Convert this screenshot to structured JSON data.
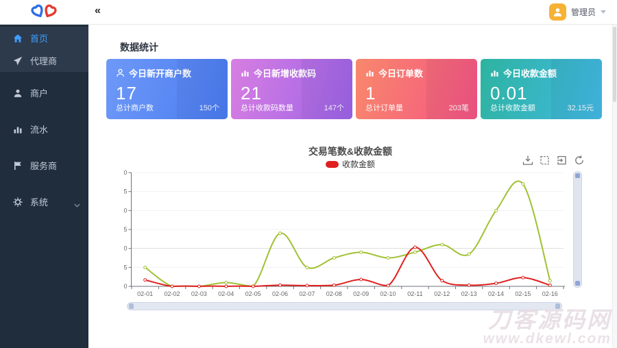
{
  "header": {
    "collapse_icon": "«",
    "user": {
      "name": "管理员"
    }
  },
  "sidebar": {
    "items": [
      {
        "label": "首页",
        "icon": "home-icon",
        "active": true
      },
      {
        "label": "代理商",
        "icon": "send-icon",
        "active": false
      },
      {
        "label": "商户",
        "icon": "user-icon",
        "active": false
      },
      {
        "label": "流水",
        "icon": "bar-chart-icon",
        "active": false
      },
      {
        "label": "服务商",
        "icon": "flag-icon",
        "active": false
      },
      {
        "label": "系统",
        "icon": "gear-icon",
        "active": false,
        "has_children": true
      }
    ]
  },
  "page": {
    "section_title": "数据统计"
  },
  "cards": [
    {
      "title": "今日新开商户数",
      "value": "17",
      "footer_label": "总计商户数",
      "footer_value": "150个",
      "icon": "person-icon",
      "gradient": [
        "#6e99f8",
        "#4a7bf0"
      ]
    },
    {
      "title": "今日新增收款码",
      "value": "21",
      "footer_label": "总计收款码数量",
      "footer_value": "147个",
      "icon": "bar-chart-icon",
      "gradient": [
        "#d77ee2",
        "#9d63e6"
      ]
    },
    {
      "title": "今日订单数",
      "value": "1",
      "footer_label": "总计订单量",
      "footer_value": "203笔",
      "icon": "bar-chart-icon",
      "gradient": [
        "#f8886c",
        "#f55383"
      ]
    },
    {
      "title": "今日收款金额",
      "value": "0.01",
      "footer_label": "总计收款金额",
      "footer_value": "32.15元",
      "icon": "bar-chart-icon",
      "gradient": [
        "#2db3a0",
        "#42b9e4"
      ]
    }
  ],
  "chart_data": {
    "type": "line",
    "title": "交易笔数&收款金额",
    "legend": [
      {
        "label": "收款金额",
        "color": "#e01f1f"
      }
    ],
    "legend_position": "top",
    "grid": true,
    "categories": [
      "02-01",
      "02-02",
      "02-03",
      "02-04",
      "02-05",
      "02-06",
      "02-07",
      "02-08",
      "02-09",
      "02-10",
      "02-11",
      "02-12",
      "02-13",
      "02-14",
      "02-15",
      "02-16"
    ],
    "series": [
      {
        "name": "交易笔数",
        "color": "#9fc131",
        "values": [
          5,
          0,
          0,
          1,
          0,
          14,
          5,
          7.5,
          9,
          7.5,
          9,
          11,
          8.5,
          20,
          27,
          1.5
        ]
      },
      {
        "name": "收款金额",
        "color": "#e01f1f",
        "values": [
          1.7,
          0,
          0,
          0,
          0,
          0.3,
          0.2,
          0.3,
          1.8,
          0.2,
          10.3,
          1.5,
          0.3,
          0.8,
          2.3,
          0.3
        ]
      }
    ],
    "ylim": [
      0,
      30
    ],
    "ytick_step": 5,
    "toolbox": [
      "save-image",
      "area-zoom",
      "zoom-reset",
      "restore"
    ]
  },
  "watermark": {
    "line1": "刀客源码网",
    "line2": "www.dkewl.com"
  }
}
